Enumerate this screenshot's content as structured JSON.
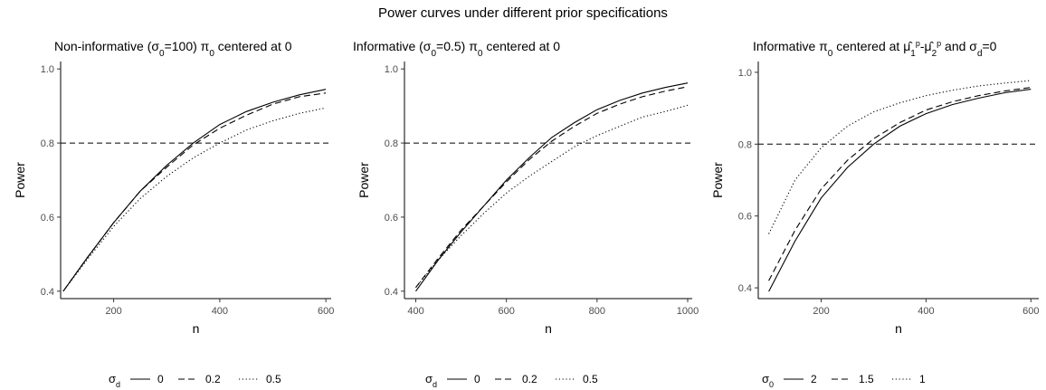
{
  "figure": {
    "title": "Power curves under different prior specifications"
  },
  "chart_data": [
    {
      "type": "line",
      "title": "Non-informative (σ₀=100) π₀ centered at 0",
      "title_parts": [
        {
          "t": "Non-informative (σ"
        },
        {
          "t": "0",
          "sub": true
        },
        {
          "t": "=100) π"
        },
        {
          "t": "0",
          "sub": true
        },
        {
          "t": " centered at 0"
        }
      ],
      "xlabel": "n",
      "ylabel": "Power",
      "xlim": [
        100,
        610
      ],
      "ylim": [
        0.38,
        1.02
      ],
      "xticks": [
        200,
        400,
        600
      ],
      "yticks": [
        0.4,
        0.6,
        0.8,
        1.0
      ],
      "ytick_labels": [
        "0.4",
        "0.6",
        "0.8",
        "1.0"
      ],
      "reference_line": {
        "y": 0.8,
        "style": "dashed"
      },
      "legend": {
        "title": "σ",
        "title_sub": "d",
        "placement": "bottom",
        "labels": [
          "0",
          "0.2",
          "0.5"
        ]
      },
      "grid": false,
      "series": [
        {
          "name": "0",
          "linetype": "solid",
          "x": [
            105,
            150,
            200,
            250,
            300,
            350,
            400,
            450,
            500,
            550,
            600
          ],
          "y": [
            0.4,
            0.49,
            0.585,
            0.67,
            0.74,
            0.8,
            0.85,
            0.885,
            0.91,
            0.93,
            0.945
          ]
        },
        {
          "name": "0.2",
          "linetype": "dashed",
          "x": [
            105,
            150,
            200,
            250,
            300,
            350,
            400,
            450,
            500,
            550,
            600
          ],
          "y": [
            0.4,
            0.49,
            0.585,
            0.67,
            0.735,
            0.795,
            0.84,
            0.875,
            0.905,
            0.925,
            0.935
          ]
        },
        {
          "name": "0.5",
          "linetype": "dotted",
          "x": [
            105,
            150,
            200,
            250,
            300,
            350,
            400,
            450,
            500,
            550,
            600
          ],
          "y": [
            0.4,
            0.485,
            0.575,
            0.65,
            0.71,
            0.76,
            0.8,
            0.835,
            0.86,
            0.88,
            0.895
          ]
        }
      ]
    },
    {
      "type": "line",
      "title": "Informative (σ₀=0.5) π₀ centered at 0",
      "title_parts": [
        {
          "t": "Informative (σ"
        },
        {
          "t": "0",
          "sub": true
        },
        {
          "t": "=0.5) π"
        },
        {
          "t": "0",
          "sub": true
        },
        {
          "t": " centered at 0"
        }
      ],
      "xlabel": "n",
      "ylabel": "Power",
      "xlim": [
        375,
        1010
      ],
      "ylim": [
        0.38,
        1.02
      ],
      "xticks": [
        400,
        600,
        800,
        1000
      ],
      "yticks": [
        0.4,
        0.6,
        0.8,
        1.0
      ],
      "ytick_labels": [
        "0.4",
        "0.6",
        "0.8",
        "1.0"
      ],
      "reference_line": {
        "y": 0.8,
        "style": "dashed"
      },
      "legend": {
        "title": "σ",
        "title_sub": "d",
        "placement": "bottom",
        "labels": [
          "0",
          "0.2",
          "0.5"
        ]
      },
      "grid": false,
      "series": [
        {
          "name": "0",
          "linetype": "solid",
          "x": [
            400,
            450,
            500,
            550,
            600,
            650,
            700,
            750,
            800,
            850,
            900,
            950,
            1000
          ],
          "y": [
            0.4,
            0.485,
            0.56,
            0.63,
            0.7,
            0.76,
            0.815,
            0.855,
            0.89,
            0.915,
            0.935,
            0.95,
            0.962
          ]
        },
        {
          "name": "0.2",
          "linetype": "dashed",
          "x": [
            400,
            450,
            500,
            550,
            600,
            650,
            700,
            750,
            800,
            850,
            900,
            950,
            1000
          ],
          "y": [
            0.41,
            0.49,
            0.565,
            0.63,
            0.695,
            0.755,
            0.805,
            0.845,
            0.88,
            0.905,
            0.925,
            0.94,
            0.952
          ]
        },
        {
          "name": "0.5",
          "linetype": "dotted",
          "x": [
            400,
            450,
            500,
            550,
            600,
            650,
            700,
            750,
            800,
            850,
            900,
            950,
            1000
          ],
          "y": [
            0.41,
            0.485,
            0.55,
            0.61,
            0.665,
            0.71,
            0.75,
            0.79,
            0.82,
            0.845,
            0.87,
            0.885,
            0.902
          ]
        }
      ]
    },
    {
      "type": "line",
      "title": "Informative π₀ centered at μ̂₁ᵖ-μ̂₂ᵖ and σ_d=0",
      "title_parts": [
        {
          "t": "Informative π"
        },
        {
          "t": "0",
          "sub": true
        },
        {
          "t": " centered at "
        },
        {
          "t": "μ̂"
        },
        {
          "t": "1",
          "sub": true
        },
        {
          "t": "p",
          "sup": true
        },
        {
          "t": "-μ̂"
        },
        {
          "t": "2",
          "sub": true
        },
        {
          "t": "p",
          "sup": true
        },
        {
          "t": " and σ"
        },
        {
          "t": "d",
          "sub": true
        },
        {
          "t": "=0"
        }
      ],
      "xlabel": "n",
      "ylabel": "Power",
      "xlim": [
        80,
        615
      ],
      "ylim": [
        0.37,
        1.03
      ],
      "xticks": [
        200,
        400,
        600
      ],
      "yticks": [
        0.4,
        0.6,
        0.8,
        1.0
      ],
      "ytick_labels": [
        "0.4",
        "0.6",
        "0.8",
        "1.0"
      ],
      "reference_line": {
        "y": 0.8,
        "style": "dashed"
      },
      "legend": {
        "title": "σ",
        "title_sub": "0",
        "placement": "bottom",
        "labels": [
          "2",
          "1.5",
          "1"
        ]
      },
      "grid": false,
      "series": [
        {
          "name": "2",
          "linetype": "solid",
          "x": [
            100,
            150,
            200,
            250,
            300,
            350,
            400,
            450,
            500,
            550,
            600
          ],
          "y": [
            0.39,
            0.53,
            0.65,
            0.735,
            0.8,
            0.85,
            0.885,
            0.91,
            0.928,
            0.943,
            0.953
          ]
        },
        {
          "name": "1.5",
          "linetype": "dashed",
          "x": [
            100,
            150,
            200,
            250,
            300,
            350,
            400,
            450,
            500,
            550,
            600
          ],
          "y": [
            0.42,
            0.56,
            0.675,
            0.755,
            0.815,
            0.86,
            0.895,
            0.918,
            0.935,
            0.948,
            0.958
          ]
        },
        {
          "name": "1",
          "linetype": "dotted",
          "x": [
            100,
            150,
            200,
            250,
            300,
            350,
            400,
            450,
            500,
            550,
            600
          ],
          "y": [
            0.55,
            0.7,
            0.79,
            0.85,
            0.89,
            0.915,
            0.935,
            0.95,
            0.962,
            0.97,
            0.977
          ]
        }
      ]
    }
  ]
}
